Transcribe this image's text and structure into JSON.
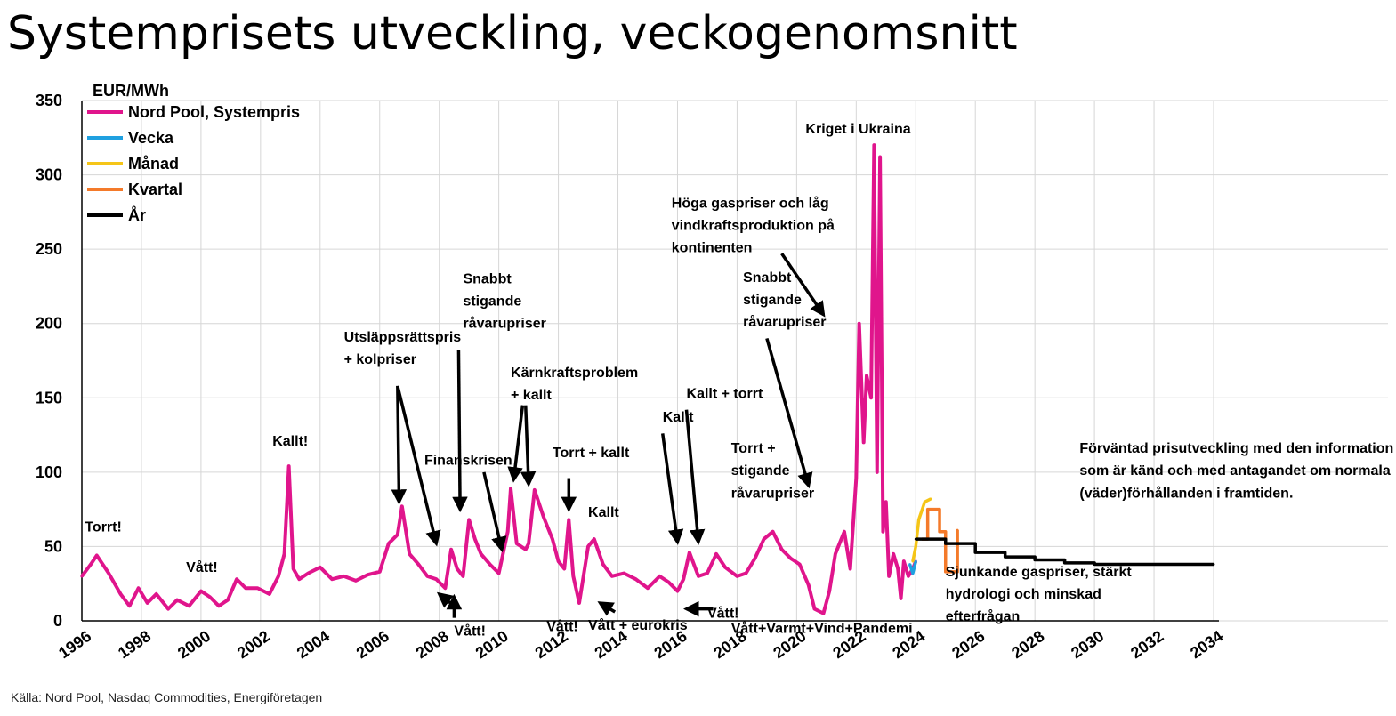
{
  "title": "Systemprisets utveckling, veckogenomsnitt",
  "source": "Källa: Nord Pool, Nasdaq Commodities, Energiföretagen",
  "chart_data": {
    "type": "line",
    "title": "Systemprisets utveckling, veckogenomsnitt",
    "ylabel": "EUR/MWh",
    "xlabel": "",
    "xlim": [
      1996,
      2034
    ],
    "ylim": [
      0,
      350
    ],
    "grid": true,
    "legend_position": "top-left",
    "x_ticks": [
      "1996",
      "1998",
      "2000",
      "2002",
      "2004",
      "2006",
      "2008",
      "2010",
      "2012",
      "2014",
      "2016",
      "2018",
      "2020",
      "2022",
      "2024",
      "2026",
      "2028",
      "2030",
      "2032",
      "2034"
    ],
    "y_ticks": [
      "0",
      "50",
      "100",
      "150",
      "200",
      "250",
      "300",
      "350"
    ],
    "series": [
      {
        "name": "Nord Pool, Systempris",
        "color": "#e0158c",
        "x": [
          1996.0,
          1996.3,
          1996.5,
          1996.9,
          1997.3,
          1997.6,
          1997.9,
          1998.2,
          1998.5,
          1998.9,
          1999.2,
          1999.6,
          2000.0,
          2000.3,
          2000.6,
          2000.9,
          2001.2,
          2001.5,
          2001.9,
          2002.3,
          2002.6,
          2002.8,
          2002.95,
          2003.1,
          2003.3,
          2003.6,
          2004.0,
          2004.4,
          2004.8,
          2005.2,
          2005.6,
          2006.0,
          2006.3,
          2006.6,
          2006.75,
          2007.0,
          2007.3,
          2007.6,
          2007.9,
          2008.2,
          2008.4,
          2008.6,
          2008.8,
          2009.0,
          2009.2,
          2009.4,
          2009.7,
          2010.0,
          2010.3,
          2010.4,
          2010.6,
          2010.9,
          2011.0,
          2011.2,
          2011.5,
          2011.8,
          2012.0,
          2012.2,
          2012.35,
          2012.5,
          2012.7,
          2013.0,
          2013.2,
          2013.5,
          2013.8,
          2014.2,
          2014.6,
          2015.0,
          2015.4,
          2015.7,
          2016.0,
          2016.2,
          2016.4,
          2016.7,
          2017.0,
          2017.3,
          2017.6,
          2018.0,
          2018.3,
          2018.6,
          2018.9,
          2019.2,
          2019.5,
          2019.8,
          2020.1,
          2020.4,
          2020.6,
          2020.9,
          2021.1,
          2021.3,
          2021.6,
          2021.8,
          2022.0,
          2022.1,
          2022.25,
          2022.35,
          2022.5,
          2022.6,
          2022.7,
          2022.8,
          2022.9,
          2023.0,
          2023.1,
          2023.25,
          2023.4,
          2023.5,
          2023.6,
          2023.75,
          2023.9,
          2024.0
        ],
        "values": [
          30,
          38,
          44,
          32,
          18,
          10,
          22,
          12,
          18,
          8,
          14,
          10,
          20,
          16,
          10,
          14,
          28,
          22,
          22,
          18,
          30,
          45,
          104,
          35,
          28,
          32,
          36,
          28,
          30,
          27,
          31,
          33,
          52,
          58,
          77,
          45,
          38,
          30,
          28,
          22,
          48,
          35,
          30,
          68,
          55,
          45,
          38,
          32,
          60,
          89,
          52,
          48,
          52,
          88,
          70,
          55,
          40,
          35,
          68,
          30,
          12,
          50,
          55,
          38,
          30,
          32,
          28,
          22,
          30,
          26,
          20,
          28,
          46,
          30,
          32,
          45,
          36,
          30,
          32,
          42,
          55,
          60,
          48,
          42,
          38,
          24,
          8,
          5,
          20,
          45,
          60,
          35,
          96,
          200,
          120,
          165,
          150,
          320,
          100,
          312,
          60,
          80,
          30,
          45,
          35,
          15,
          40,
          30,
          35,
          40
        ],
        "opacity": 1
      },
      {
        "name": "Vecka",
        "color": "#1fa0e0",
        "x": [
          2023.8,
          2023.9,
          2024.0
        ],
        "values": [
          38,
          32,
          40
        ]
      },
      {
        "name": "Månad",
        "color": "#f5c518",
        "x": [
          2023.9,
          2024.0,
          2024.1,
          2024.3,
          2024.5
        ],
        "values": [
          40,
          50,
          68,
          80,
          82
        ]
      },
      {
        "name": "Kvartal",
        "color": "#f47a2a",
        "x": [
          2024.2,
          2024.4,
          2024.6,
          2024.8,
          2025.0,
          2025.2,
          2025.4
        ],
        "values": [
          55,
          75,
          75,
          60,
          33,
          33,
          61
        ]
      },
      {
        "name": "År",
        "color": "#000000",
        "x": [
          2024.0,
          2025.0,
          2026.0,
          2027.0,
          2028.0,
          2029.0,
          2030.0,
          2031.0,
          2032.0,
          2033.0,
          2034.0
        ],
        "values": [
          55,
          52,
          46,
          43,
          41,
          39,
          38,
          38,
          38,
          38,
          38
        ]
      }
    ],
    "annotations": [
      {
        "text": "Torrt!",
        "x": 1996.1,
        "y": 60
      },
      {
        "text": "Vått!",
        "x": 1999.5,
        "y": 33
      },
      {
        "text": "Kallt!",
        "x": 2002.4,
        "y": 118
      },
      {
        "text": "Utsläppsrättspris",
        "x": 2004.8,
        "y": 188
      },
      {
        "text": "+ kolpriser",
        "x": 2004.8,
        "y": 173
      },
      {
        "text": "Vått!",
        "x": 2008.5,
        "y": -10
      },
      {
        "text": "Finanskrisen",
        "x": 2007.5,
        "y": 105
      },
      {
        "text": "Snabbt",
        "x": 2008.8,
        "y": 227
      },
      {
        "text": "stigande",
        "x": 2008.8,
        "y": 212
      },
      {
        "text": "råvarupriser",
        "x": 2008.8,
        "y": 197
      },
      {
        "text": "Kärnkraftsproblem",
        "x": 2010.4,
        "y": 164
      },
      {
        "text": "+ kallt",
        "x": 2010.4,
        "y": 149
      },
      {
        "text": "Vått!",
        "x": 2011.6,
        "y": -7
      },
      {
        "text": "Torrt + kallt",
        "x": 2011.8,
        "y": 110
      },
      {
        "text": "Kallt",
        "x": 2013.0,
        "y": 70
      },
      {
        "text": "Vått + eurokris",
        "x": 2013.0,
        "y": -6
      },
      {
        "text": "Kallt",
        "x": 2015.5,
        "y": 134
      },
      {
        "text": "Kallt + torrt",
        "x": 2016.3,
        "y": 150
      },
      {
        "text": "Vått!",
        "x": 2017.0,
        "y": 2
      },
      {
        "text": "Torrt +",
        "x": 2017.8,
        "y": 113
      },
      {
        "text": "stigande",
        "x": 2017.8,
        "y": 98
      },
      {
        "text": "råvarupriser",
        "x": 2017.8,
        "y": 83
      },
      {
        "text": "Vått+Varmt+Vind+Pandemi",
        "x": 2017.8,
        "y": -8
      },
      {
        "text": "Höga gaspriser och låg",
        "x": 2015.8,
        "y": 278
      },
      {
        "text": "vindkraftsproduktion på",
        "x": 2015.8,
        "y": 263
      },
      {
        "text": "kontinenten",
        "x": 2015.8,
        "y": 248
      },
      {
        "text": "Snabbt",
        "x": 2018.2,
        "y": 228
      },
      {
        "text": "stigande",
        "x": 2018.2,
        "y": 213
      },
      {
        "text": "råvarupriser",
        "x": 2018.2,
        "y": 198
      },
      {
        "text": "Kriget i Ukraina",
        "x": 2020.3,
        "y": 328
      },
      {
        "text": "Förväntad prisutveckling med den information",
        "x": 2029.5,
        "y": 113
      },
      {
        "text": "som är känd och med antagandet om normala",
        "x": 2029.5,
        "y": 98
      },
      {
        "text": "(väder)förhållanden i framtiden.",
        "x": 2029.5,
        "y": 83
      },
      {
        "text": "Sjunkande gaspriser, stärkt",
        "x": 2025.0,
        "y": 30
      },
      {
        "text": "hydrologi och minskad",
        "x": 2025.0,
        "y": 15
      },
      {
        "text": "efterfrågan",
        "x": 2025.0,
        "y": 0
      }
    ]
  }
}
